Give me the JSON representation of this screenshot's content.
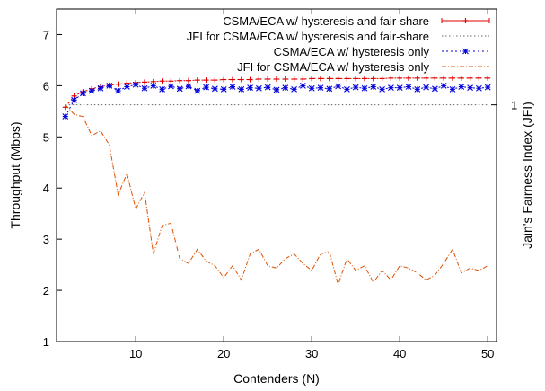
{
  "chart_data": {
    "type": "line",
    "title": "",
    "xlabel": "Contenders (N)",
    "ylabel": "Throughput (Mbps)",
    "y2label": "Jain's Fairness Index (JFI)",
    "xlim": [
      1,
      51
    ],
    "ylim": [
      1,
      7.5
    ],
    "y2lim": [
      0,
      1.405
    ],
    "xticks": [
      10,
      20,
      30,
      40,
      50
    ],
    "yticks": [
      1,
      2,
      3,
      4,
      5,
      6,
      7
    ],
    "y2ticks": [
      1
    ],
    "grid": false,
    "legend_position": "top-right",
    "series": [
      {
        "name": "CSMA/ECA w/ hysteresis and fair-share",
        "axis": "y",
        "color": "#e00000",
        "style": "plus-marker",
        "x": [
          2,
          3,
          4,
          5,
          6,
          7,
          8,
          9,
          10,
          11,
          12,
          13,
          14,
          15,
          16,
          17,
          18,
          19,
          20,
          21,
          22,
          23,
          24,
          25,
          26,
          27,
          28,
          29,
          30,
          31,
          32,
          33,
          34,
          35,
          36,
          37,
          38,
          39,
          40,
          41,
          42,
          43,
          44,
          45,
          46,
          47,
          48,
          49,
          50
        ],
        "y": [
          5.58,
          5.8,
          5.88,
          5.94,
          5.98,
          6.01,
          6.03,
          6.05,
          6.06,
          6.07,
          6.08,
          6.09,
          6.09,
          6.1,
          6.1,
          6.11,
          6.11,
          6.11,
          6.12,
          6.12,
          6.12,
          6.12,
          6.13,
          6.13,
          6.13,
          6.13,
          6.13,
          6.13,
          6.14,
          6.14,
          6.14,
          6.14,
          6.14,
          6.14,
          6.14,
          6.14,
          6.14,
          6.15,
          6.15,
          6.15,
          6.15,
          6.15,
          6.15,
          6.15,
          6.15,
          6.15,
          6.15,
          6.15,
          6.15
        ]
      },
      {
        "name": "JFI for CSMA/ECA w/ hysteresis and fair-share",
        "axis": "y2",
        "color": "#666666",
        "style": "dotted",
        "x": [
          2,
          50
        ],
        "y": [
          1.0,
          1.0
        ]
      },
      {
        "name": "CSMA/ECA w/ hysteresis only",
        "axis": "y",
        "color": "#0000dd",
        "style": "star-marker",
        "x": [
          2,
          3,
          4,
          5,
          6,
          7,
          8,
          9,
          10,
          11,
          12,
          13,
          14,
          15,
          16,
          17,
          18,
          19,
          20,
          21,
          22,
          23,
          24,
          25,
          26,
          27,
          28,
          29,
          30,
          31,
          32,
          33,
          34,
          35,
          36,
          37,
          38,
          39,
          40,
          41,
          42,
          43,
          44,
          45,
          46,
          47,
          48,
          49,
          50
        ],
        "y": [
          5.4,
          5.72,
          5.85,
          5.9,
          5.95,
          6.0,
          5.9,
          5.98,
          6.02,
          5.95,
          6.0,
          5.93,
          5.99,
          5.94,
          5.99,
          5.9,
          5.97,
          5.94,
          5.93,
          5.98,
          5.93,
          5.96,
          5.95,
          5.97,
          5.92,
          5.96,
          5.93,
          6.0,
          5.95,
          5.96,
          5.94,
          5.99,
          5.93,
          5.97,
          5.95,
          5.98,
          5.93,
          5.96,
          5.96,
          5.98,
          5.93,
          5.97,
          5.94,
          6.0,
          5.93,
          5.98,
          5.96,
          5.95,
          5.97
        ]
      },
      {
        "name": "JFI for CSMA/ECA w/ hysteresis only",
        "axis": "y2",
        "color": "#e05000",
        "style": "dash-dot",
        "x": [
          2,
          3,
          4,
          5,
          6,
          7,
          8,
          9,
          10,
          11,
          12,
          13,
          14,
          15,
          16,
          17,
          18,
          19,
          20,
          21,
          22,
          23,
          24,
          25,
          26,
          27,
          28,
          29,
          30,
          31,
          32,
          33,
          34,
          35,
          36,
          37,
          38,
          39,
          40,
          41,
          42,
          43,
          44,
          45,
          46,
          47,
          48,
          49,
          50
        ],
        "y": [
          1.0,
          0.96,
          0.95,
          0.87,
          0.89,
          0.83,
          0.62,
          0.71,
          0.56,
          0.63,
          0.37,
          0.49,
          0.5,
          0.35,
          0.33,
          0.39,
          0.34,
          0.32,
          0.27,
          0.32,
          0.26,
          0.37,
          0.39,
          0.32,
          0.31,
          0.35,
          0.37,
          0.33,
          0.3,
          0.37,
          0.38,
          0.24,
          0.35,
          0.3,
          0.32,
          0.25,
          0.3,
          0.26,
          0.32,
          0.31,
          0.29,
          0.26,
          0.28,
          0.33,
          0.39,
          0.29,
          0.31,
          0.3,
          0.32
        ]
      }
    ]
  }
}
